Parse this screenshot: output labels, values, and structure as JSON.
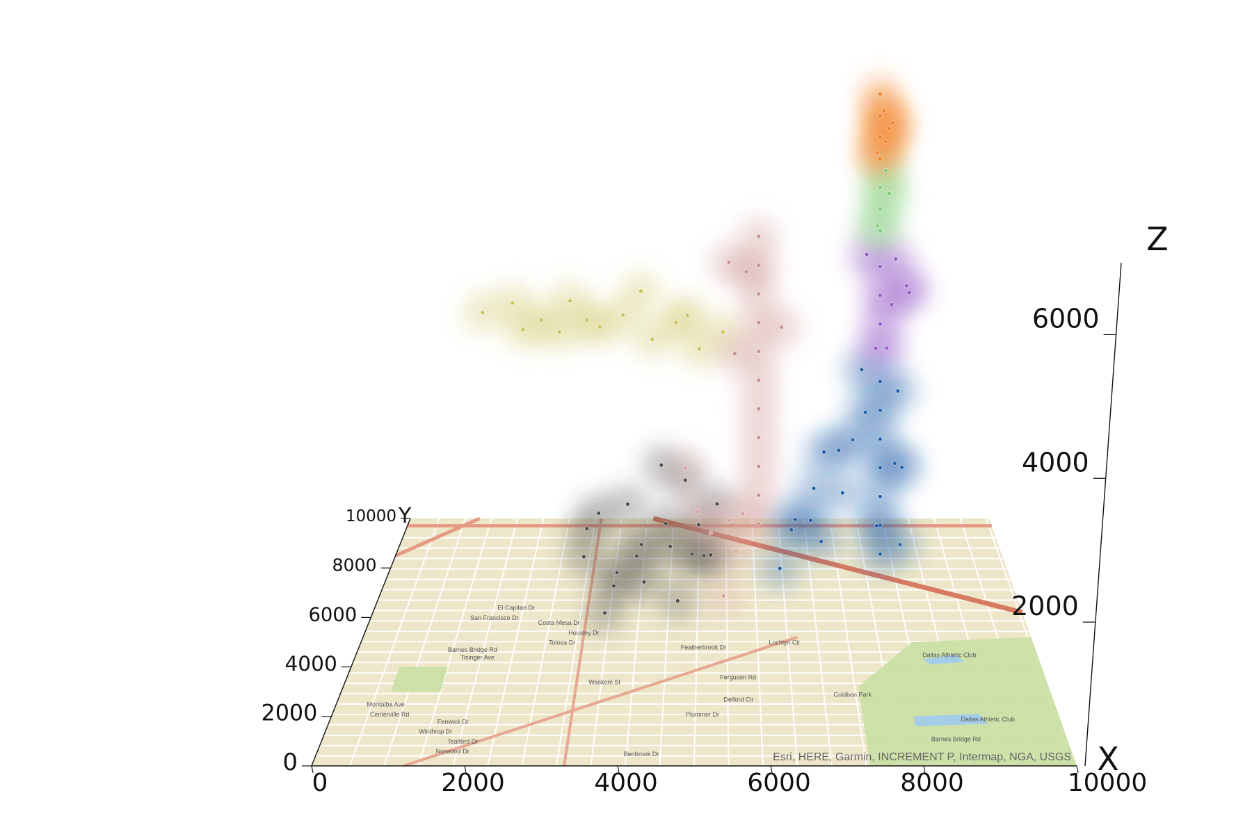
{
  "chart_data": {
    "type": "scatter",
    "title": "",
    "projection": "3d",
    "xlabel": "X",
    "ylabel": "Y",
    "zlabel": "Z",
    "xlim": [
      0,
      10000
    ],
    "ylim": [
      0,
      10000
    ],
    "zlim": [
      0,
      7000
    ],
    "x_ticks": [
      "0",
      "2000",
      "4000",
      "6000",
      "8000",
      "10000"
    ],
    "y_ticks": [
      "0",
      "2000",
      "4000",
      "6000",
      "8000",
      "10000"
    ],
    "z_ticks": [
      "2000",
      "4000",
      "6000"
    ],
    "x_tick_values": [
      0,
      2000,
      4000,
      6000,
      8000,
      10000
    ],
    "y_tick_values": [
      0,
      2000,
      4000,
      6000,
      8000,
      10000
    ],
    "z_tick_values": [
      2000,
      4000,
      6000
    ],
    "basemap_attribution": "Esri, HERE, Garmin, INCREMENT P, Intermap, NGA, USGS",
    "street_labels": [
      {
        "text": "El Capitan Dr",
        "x": 2200,
        "y": 6300
      },
      {
        "text": "San Francisco Dr",
        "x": 1900,
        "y": 5900
      },
      {
        "text": "Costa Mesa Dr",
        "x": 2900,
        "y": 5700
      },
      {
        "text": "Housley Dr",
        "x": 3300,
        "y": 5300
      },
      {
        "text": "Tolosa Dr",
        "x": 3000,
        "y": 4900
      },
      {
        "text": "Barnes Bridge Rd",
        "x": 1700,
        "y": 4600
      },
      {
        "text": "Tisinger Ave",
        "x": 1800,
        "y": 4300
      },
      {
        "text": "Waskom St",
        "x": 3700,
        "y": 3300
      },
      {
        "text": "Montalba Ave",
        "x": 700,
        "y": 2400
      },
      {
        "text": "Centerville Rd",
        "x": 800,
        "y": 2000
      },
      {
        "text": "Fenwick Dr",
        "x": 1700,
        "y": 1700
      },
      {
        "text": "Winthrop Dr",
        "x": 1500,
        "y": 1300
      },
      {
        "text": "Tealford Dr",
        "x": 1900,
        "y": 900
      },
      {
        "text": "Norwood Dr",
        "x": 1800,
        "y": 500
      },
      {
        "text": "Benbrook Dr",
        "x": 4300,
        "y": 400
      },
      {
        "text": "Plummer Dr",
        "x": 5100,
        "y": 2000
      },
      {
        "text": "Delford Cir",
        "x": 5600,
        "y": 2600
      },
      {
        "text": "Ferguson Rd",
        "x": 5600,
        "y": 3500
      },
      {
        "text": "Coldbon Park",
        "x": 7200,
        "y": 2800
      },
      {
        "text": "Dallas Athletic Club",
        "x": 9000,
        "y": 1800
      },
      {
        "text": "Dallas Athletic Club",
        "x": 8700,
        "y": 4400
      },
      {
        "text": "Barnes Bridge Rd",
        "x": 8500,
        "y": 1000
      },
      {
        "text": "Featherbrook Dr",
        "x": 5100,
        "y": 4700
      },
      {
        "text": "Lochlyn Cir",
        "x": 6300,
        "y": 4900
      }
    ],
    "series": [
      {
        "color": "#4a4a4a",
        "points": [
          [
            3200,
            7000,
            500
          ],
          [
            3400,
            7600,
            900
          ],
          [
            3700,
            6400,
            300
          ],
          [
            4100,
            7200,
            600
          ],
          [
            4500,
            6600,
            1100
          ],
          [
            4900,
            7400,
            400
          ],
          [
            5200,
            6200,
            800
          ],
          [
            3600,
            5600,
            200
          ],
          [
            4200,
            5400,
            700
          ],
          [
            4700,
            5800,
            300
          ],
          [
            5100,
            5600,
            1000
          ],
          [
            3900,
            6800,
            1300
          ],
          [
            4400,
            7800,
            1500
          ],
          [
            3300,
            6100,
            1200
          ],
          [
            4800,
            6900,
            1600
          ],
          [
            5300,
            7100,
            1200
          ],
          [
            3800,
            5200,
            900
          ],
          [
            4600,
            5100,
            1300
          ],
          [
            4000,
            7900,
            200
          ],
          [
            5000,
            8000,
            600
          ]
        ]
      },
      {
        "color": "#d8a0a0",
        "points": [
          [
            5200,
            6800,
            900
          ],
          [
            5600,
            7200,
            500
          ],
          [
            5000,
            6200,
            1400
          ],
          [
            5400,
            6000,
            300
          ],
          [
            4800,
            7100,
            1700
          ],
          [
            5700,
            6700,
            1200
          ],
          [
            5500,
            7600,
            800
          ]
        ]
      },
      {
        "color": "#c9c25a",
        "points": [
          [
            1300,
            9600,
            3000
          ],
          [
            1800,
            9700,
            3100
          ],
          [
            2300,
            9600,
            2900
          ],
          [
            2800,
            9500,
            3200
          ],
          [
            3300,
            9600,
            2800
          ],
          [
            3700,
            9500,
            3000
          ],
          [
            4200,
            9400,
            2700
          ],
          [
            4600,
            9500,
            2900
          ],
          [
            5000,
            9300,
            2600
          ],
          [
            5400,
            9400,
            2800
          ],
          [
            2600,
            9700,
            2700
          ],
          [
            4000,
            9600,
            3300
          ],
          [
            4800,
            9200,
            3100
          ],
          [
            3100,
            9300,
            3000
          ],
          [
            2000,
            9500,
            2800
          ]
        ]
      },
      {
        "color": "#c8908c",
        "points": [
          [
            6000,
            9200,
            4200
          ],
          [
            6000,
            9200,
            3800
          ],
          [
            6000,
            9200,
            3400
          ],
          [
            6000,
            9200,
            3000
          ],
          [
            6000,
            9200,
            2600
          ],
          [
            6000,
            9200,
            2200
          ],
          [
            6000,
            9200,
            1800
          ],
          [
            6000,
            9200,
            1400
          ],
          [
            6000,
            9200,
            1000
          ],
          [
            6000,
            9200,
            600
          ],
          [
            6000,
            9200,
            200
          ],
          [
            5500,
            9600,
            3700
          ],
          [
            5800,
            9800,
            3500
          ],
          [
            6400,
            9600,
            2800
          ],
          [
            5600,
            9400,
            2500
          ]
        ]
      },
      {
        "color": "#1f5fa8",
        "points": [
          [
            6600,
            8800,
            400
          ],
          [
            6900,
            8600,
            900
          ],
          [
            7100,
            9200,
            1200
          ],
          [
            7400,
            9000,
            700
          ],
          [
            7000,
            8200,
            300
          ],
          [
            6500,
            7800,
            600
          ],
          [
            7300,
            8400,
            1500
          ],
          [
            7600,
            9400,
            1300
          ],
          [
            6300,
            7400,
            200
          ],
          [
            6800,
            7600,
            800
          ],
          [
            7900,
            7400,
            2800
          ],
          [
            7900,
            7400,
            2400
          ],
          [
            7900,
            7400,
            2000
          ],
          [
            7900,
            7400,
            1600
          ],
          [
            7900,
            7400,
            1200
          ],
          [
            7900,
            7400,
            800
          ],
          [
            7900,
            7400,
            400
          ],
          [
            8100,
            7000,
            1800
          ],
          [
            8200,
            7600,
            2600
          ],
          [
            7800,
            6800,
            1000
          ],
          [
            8300,
            8000,
            1400
          ],
          [
            7700,
            7900,
            2200
          ],
          [
            8200,
            7200,
            600
          ],
          [
            7600,
            7300,
            3000
          ]
        ]
      },
      {
        "color": "#9458c7",
        "points": [
          [
            7900,
            7400,
            3600
          ],
          [
            7900,
            7400,
            4000
          ],
          [
            7900,
            7400,
            4400
          ],
          [
            8100,
            7600,
            3800
          ],
          [
            8300,
            7200,
            4200
          ],
          [
            7800,
            7000,
            3400
          ],
          [
            8400,
            7800,
            3900
          ],
          [
            8200,
            8000,
            4300
          ],
          [
            7700,
            7600,
            4500
          ],
          [
            8000,
            7300,
            3300
          ]
        ]
      },
      {
        "color": "#7ccc77",
        "points": [
          [
            7900,
            7400,
            4900
          ],
          [
            7900,
            7400,
            5200
          ],
          [
            7900,
            7400,
            5500
          ],
          [
            8000,
            7500,
            5700
          ],
          [
            7850,
            7300,
            5000
          ],
          [
            8050,
            7450,
            5400
          ]
        ]
      },
      {
        "color": "#f07f22",
        "points": [
          [
            7900,
            7400,
            5900
          ],
          [
            7900,
            7400,
            6200
          ],
          [
            7900,
            7400,
            6500
          ],
          [
            7900,
            7400,
            6800
          ],
          [
            8000,
            7500,
            6100
          ],
          [
            8100,
            7400,
            6400
          ],
          [
            7950,
            7300,
            6600
          ],
          [
            8050,
            7450,
            6300
          ],
          [
            7850,
            7350,
            6000
          ]
        ]
      }
    ]
  }
}
